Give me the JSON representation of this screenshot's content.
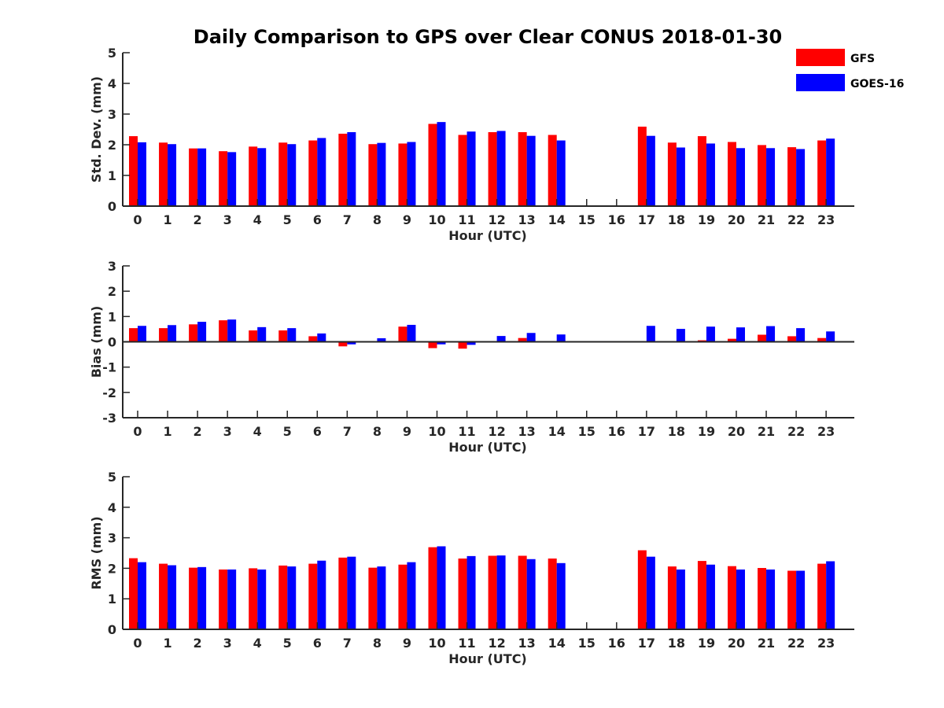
{
  "title": "Daily Comparison to GPS over Clear CONUS 2018-01-30",
  "legend": [
    {
      "name": "GFS",
      "color": "#ff0000"
    },
    {
      "name": "GOES-16",
      "color": "#0000ff"
    }
  ],
  "chart_data": [
    {
      "type": "bar",
      "title": "Daily Comparison to GPS over Clear CONUS 2018-01-30",
      "xlabel": "Hour (UTC)",
      "ylabel": "Std. Dev. (mm)",
      "ylim": [
        0,
        5
      ],
      "yticks": [
        0,
        1,
        2,
        3,
        4,
        5
      ],
      "categories": [
        "0",
        "1",
        "2",
        "3",
        "4",
        "5",
        "6",
        "7",
        "8",
        "9",
        "10",
        "11",
        "12",
        "13",
        "14",
        "15",
        "16",
        "17",
        "18",
        "19",
        "20",
        "21",
        "22",
        "23"
      ],
      "series": [
        {
          "name": "GFS",
          "color": "#ff0000",
          "values": [
            2.28,
            2.07,
            1.88,
            1.79,
            1.94,
            2.07,
            2.14,
            2.36,
            2.02,
            2.04,
            2.68,
            2.32,
            2.41,
            2.41,
            2.32,
            null,
            null,
            2.59,
            2.07,
            2.28,
            2.09,
            1.99,
            1.92,
            2.14
          ]
        },
        {
          "name": "GOES-16",
          "color": "#0000ff",
          "values": [
            2.08,
            2.02,
            1.88,
            1.76,
            1.89,
            2.02,
            2.22,
            2.41,
            2.06,
            2.09,
            2.74,
            2.43,
            2.45,
            2.29,
            2.14,
            null,
            null,
            2.29,
            1.91,
            2.04,
            1.89,
            1.89,
            1.86,
            2.2
          ]
        }
      ]
    },
    {
      "type": "bar",
      "xlabel": "Hour (UTC)",
      "ylabel": "Bias (mm)",
      "ylim": [
        -3,
        3
      ],
      "yticks": [
        -3,
        -2,
        -1,
        0,
        1,
        2,
        3
      ],
      "categories": [
        "0",
        "1",
        "2",
        "3",
        "4",
        "5",
        "6",
        "7",
        "8",
        "9",
        "10",
        "11",
        "12",
        "13",
        "14",
        "15",
        "16",
        "17",
        "18",
        "19",
        "20",
        "21",
        "22",
        "23"
      ],
      "series": [
        {
          "name": "GFS",
          "color": "#ff0000",
          "values": [
            0.54,
            0.54,
            0.69,
            0.85,
            0.45,
            0.45,
            0.22,
            -0.18,
            0.02,
            0.6,
            -0.25,
            -0.27,
            0.0,
            0.15,
            0.0,
            null,
            null,
            0.03,
            0.0,
            0.06,
            0.12,
            0.28,
            0.22,
            0.15
          ]
        },
        {
          "name": "GOES-16",
          "color": "#0000ff",
          "values": [
            0.63,
            0.66,
            0.79,
            0.88,
            0.58,
            0.54,
            0.33,
            -0.1,
            0.14,
            0.67,
            -0.1,
            -0.12,
            0.23,
            0.35,
            0.29,
            null,
            null,
            0.63,
            0.51,
            0.6,
            0.57,
            0.62,
            0.54,
            0.41
          ]
        }
      ]
    },
    {
      "type": "bar",
      "xlabel": "Hour (UTC)",
      "ylabel": "RMS (mm)",
      "ylim": [
        0,
        5
      ],
      "yticks": [
        0,
        1,
        2,
        3,
        4,
        5
      ],
      "categories": [
        "0",
        "1",
        "2",
        "3",
        "4",
        "5",
        "6",
        "7",
        "8",
        "9",
        "10",
        "11",
        "12",
        "13",
        "14",
        "15",
        "16",
        "17",
        "18",
        "19",
        "20",
        "21",
        "22",
        "23"
      ],
      "series": [
        {
          "name": "GFS",
          "color": "#ff0000",
          "values": [
            2.33,
            2.15,
            2.02,
            1.96,
            2.0,
            2.09,
            2.15,
            2.35,
            2.02,
            2.12,
            2.69,
            2.32,
            2.41,
            2.41,
            2.32,
            null,
            null,
            2.59,
            2.06,
            2.24,
            2.07,
            2.01,
            1.92,
            2.15
          ]
        },
        {
          "name": "GOES-16",
          "color": "#0000ff",
          "values": [
            2.2,
            2.1,
            2.04,
            1.96,
            1.96,
            2.06,
            2.25,
            2.38,
            2.06,
            2.2,
            2.72,
            2.4,
            2.42,
            2.3,
            2.17,
            null,
            null,
            2.38,
            1.96,
            2.12,
            1.96,
            1.96,
            1.92,
            2.23
          ]
        }
      ]
    }
  ]
}
